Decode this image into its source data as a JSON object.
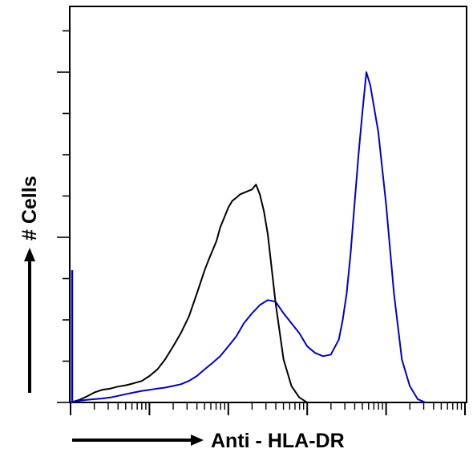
{
  "chart_data": {
    "type": "line",
    "xlabel": "Anti - HLA-DR",
    "ylabel": "# Cells",
    "x_scale": "log",
    "xlim": [
      1,
      100000
    ],
    "ylim": [
      0,
      100
    ],
    "grid": false,
    "legend": "none",
    "series": [
      {
        "color": "#000000",
        "x": [
          1,
          1.3,
          1.6,
          2,
          2.5,
          3.2,
          4,
          5,
          6.3,
          8,
          10,
          12.6,
          15.8,
          20,
          25,
          31.6,
          40,
          50,
          56,
          63,
          71,
          79,
          89,
          100,
          112,
          126,
          141,
          158,
          178,
          200,
          224,
          251,
          282,
          316,
          398,
          501,
          631,
          794,
          1000
        ],
        "y": [
          0,
          0.8,
          1.8,
          3,
          3.8,
          4.2,
          4.8,
          5.2,
          5.8,
          6.5,
          8,
          10,
          13,
          17,
          21,
          26,
          33,
          40,
          43,
          46,
          49,
          53,
          56,
          59,
          61,
          62,
          63,
          63.5,
          64,
          64.5,
          66,
          63,
          58,
          51,
          30,
          13,
          5,
          1.5,
          0
        ]
      },
      {
        "color": "#0000cc",
        "x": [
          1,
          1.3,
          1.6,
          2,
          2.5,
          3.2,
          4,
          5,
          6.3,
          8,
          10,
          12.6,
          15.8,
          20,
          25,
          31.6,
          40,
          50,
          63,
          79,
          100,
          126,
          158,
          200,
          251,
          316,
          398,
          501,
          631,
          794,
          1000,
          1259,
          1585,
          1995,
          2512,
          2818,
          3162,
          3548,
          3981,
          4467,
          5012,
          5623,
          6310,
          7943,
          10000,
          12589,
          15849,
          19953,
          25119,
          31623
        ],
        "y": [
          0,
          0.5,
          0.8,
          1,
          1.2,
          1.5,
          2,
          2.5,
          3,
          3.5,
          3.8,
          4.2,
          4.5,
          5,
          5.5,
          6.5,
          8,
          10,
          12,
          14,
          17,
          20,
          24,
          27,
          29.5,
          31,
          30.5,
          27,
          24,
          21,
          17,
          15,
          14,
          14.5,
          19,
          25,
          33,
          45,
          60,
          75,
          88,
          100,
          96,
          82,
          60,
          33,
          13,
          5,
          1,
          0
        ]
      }
    ]
  }
}
